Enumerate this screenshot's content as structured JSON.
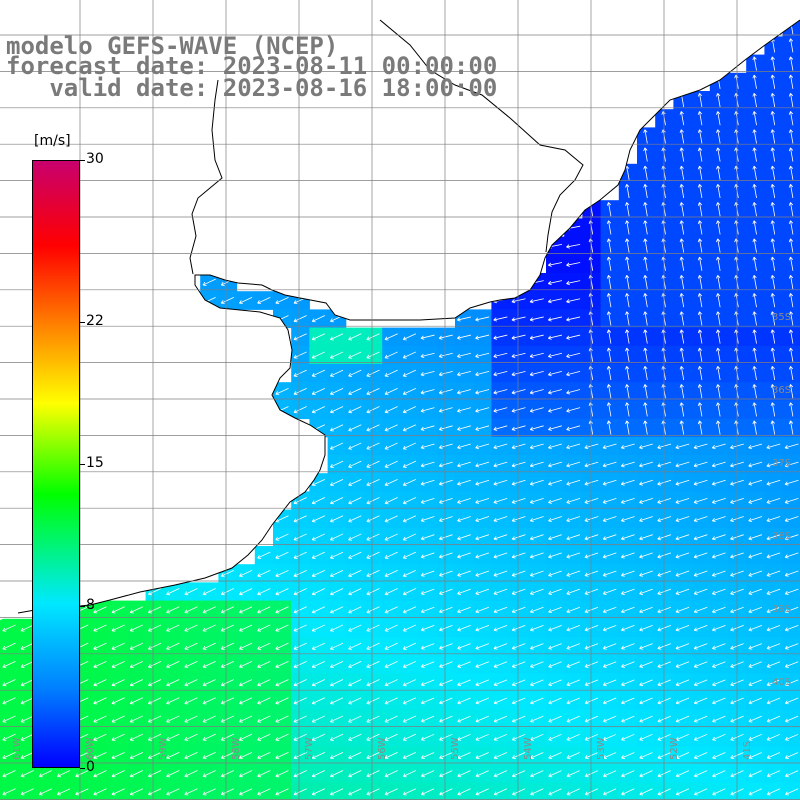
{
  "title": {
    "line1": "modelo GEFS-WAVE (NCEP)",
    "line2": "forecast date: 2023-08-11 00:00:00",
    "line3": "   valid date: 2023-08-16 18:00:00"
  },
  "colorbar": {
    "unit": "[m/s]",
    "min": 0,
    "max": 30,
    "ticks": [
      {
        "value": 30,
        "label": "30"
      },
      {
        "value": 22,
        "label": "22"
      },
      {
        "value": 15,
        "label": "15"
      },
      {
        "value": 8,
        "label": "8"
      },
      {
        "value": 0,
        "label": "0"
      }
    ],
    "stops": [
      {
        "at": 0.0,
        "color": "#0000ff"
      },
      {
        "at": 0.13,
        "color": "#0080ff"
      },
      {
        "at": 0.27,
        "color": "#00e8ff"
      },
      {
        "at": 0.45,
        "color": "#00ff00"
      },
      {
        "at": 0.6,
        "color": "#ffff00"
      },
      {
        "at": 0.73,
        "color": "#ff8000"
      },
      {
        "at": 0.86,
        "color": "#ff0000"
      },
      {
        "at": 1.0,
        "color": "#c8006e"
      }
    ]
  },
  "map": {
    "extent": {
      "lon_min": -62,
      "lon_max": -41,
      "lat_min": -42,
      "lat_max": -21
    },
    "land_color": "#ffffff",
    "coast_color": "#000000",
    "grid_color": "#7f7f7f",
    "lat_labels": [
      "35S",
      "36S",
      "37S",
      "38S",
      "39S",
      "40S"
    ],
    "lon_labels": [
      "61W",
      "60W",
      "59W",
      "58W",
      "57W",
      "56W",
      "55W",
      "54W",
      "53W",
      "52W",
      "41S"
    ]
  },
  "field": {
    "description_keys": [
      "wind speed m/s",
      "arrow direction deg"
    ],
    "ocean_speed_regions": [
      {
        "name": "southwest",
        "speed": 10
      },
      {
        "name": "central",
        "speed": 7
      },
      {
        "name": "northeast",
        "speed": 3
      },
      {
        "name": "plume",
        "speed": 1
      }
    ]
  }
}
